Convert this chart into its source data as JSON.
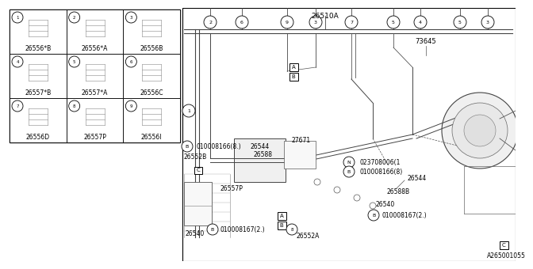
{
  "bg_color": "#ffffff",
  "grid_cells": [
    {
      "row": 0,
      "col": 0,
      "num": "1",
      "label": "26556*B"
    },
    {
      "row": 0,
      "col": 1,
      "num": "2",
      "label": "26556*A"
    },
    {
      "row": 0,
      "col": 2,
      "num": "3",
      "label": "26556B"
    },
    {
      "row": 1,
      "col": 0,
      "num": "4",
      "label": "26557*B"
    },
    {
      "row": 1,
      "col": 1,
      "num": "5",
      "label": "26557*A"
    },
    {
      "row": 1,
      "col": 2,
      "num": "6",
      "label": "26556C"
    },
    {
      "row": 2,
      "col": 0,
      "num": "7",
      "label": "26556D"
    },
    {
      "row": 2,
      "col": 1,
      "num": "8",
      "label": "26557P"
    },
    {
      "row": 2,
      "col": 2,
      "num": "9",
      "label": "26556I"
    }
  ],
  "footnote": "A265001055",
  "top_label": "26510A",
  "top_label2": "73645",
  "callout_numbers_top": [
    "2",
    "6",
    "9",
    "3",
    "7",
    "5",
    "4",
    "5",
    "3"
  ],
  "callout_number_left": "1"
}
